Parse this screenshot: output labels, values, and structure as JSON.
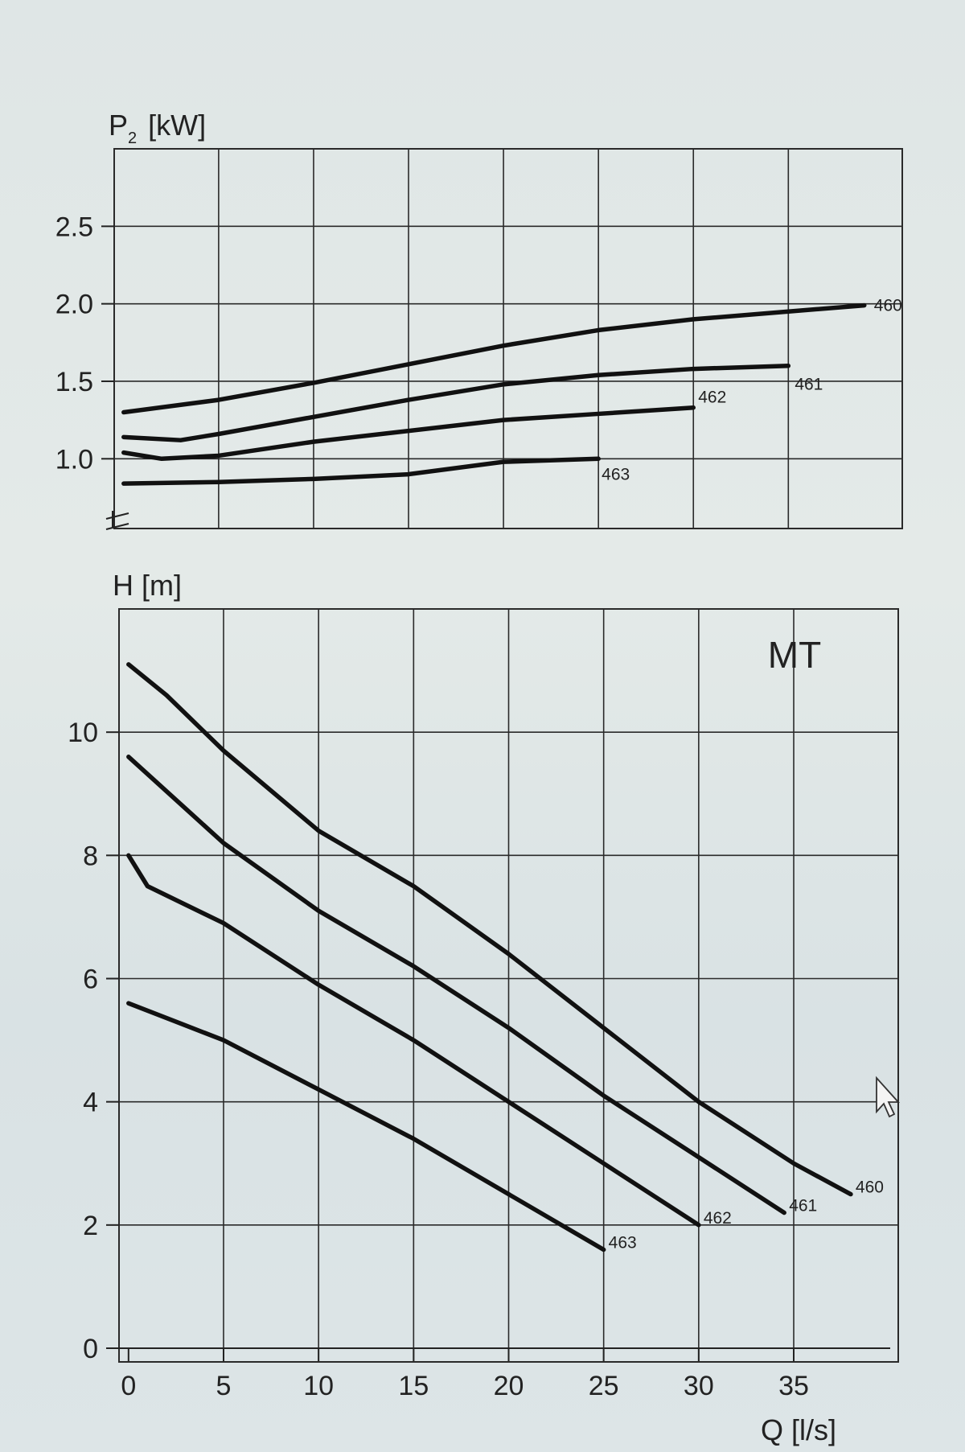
{
  "chart_data": [
    {
      "type": "line",
      "ylabel_main": "P",
      "ylabel_sub": "2",
      "ylabel_unit": "[kW]",
      "xlim": [
        -0.5,
        41
      ],
      "ylim": [
        0.55,
        3.0
      ],
      "yticks": [
        1.0,
        1.5,
        2.0,
        2.5
      ],
      "ytick_labels": [
        "1.0",
        "1.5",
        "2.0",
        "2.5"
      ],
      "grid": true,
      "series": [
        {
          "name": "460",
          "x": [
            0,
            5,
            10,
            15,
            20,
            25,
            30,
            35,
            39
          ],
          "y": [
            1.3,
            1.38,
            1.49,
            1.61,
            1.73,
            1.83,
            1.9,
            1.95,
            1.99
          ]
        },
        {
          "name": "461",
          "x": [
            0,
            3,
            5,
            10,
            15,
            20,
            25,
            30,
            35
          ],
          "y": [
            1.14,
            1.12,
            1.16,
            1.27,
            1.38,
            1.48,
            1.54,
            1.58,
            1.6
          ]
        },
        {
          "name": "462",
          "x": [
            0,
            2,
            5,
            10,
            15,
            20,
            25,
            30
          ],
          "y": [
            1.04,
            1.0,
            1.02,
            1.11,
            1.18,
            1.25,
            1.29,
            1.33
          ]
        },
        {
          "name": "463",
          "x": [
            0,
            5,
            10,
            15,
            20,
            25
          ],
          "y": [
            0.84,
            0.85,
            0.87,
            0.9,
            0.98,
            1.0
          ]
        }
      ]
    },
    {
      "type": "line",
      "ylabel": "H [m]",
      "xlabel": "Q [l/s]",
      "annotation": "MT",
      "xlim": [
        -0.5,
        40.5
      ],
      "ylim": [
        0,
        12
      ],
      "xticks": [
        0,
        5,
        10,
        15,
        20,
        25,
        30,
        35
      ],
      "xtick_labels": [
        "0",
        "5",
        "10",
        "15",
        "20",
        "25",
        "30",
        "35"
      ],
      "yticks": [
        0,
        2,
        4,
        6,
        8,
        10
      ],
      "ytick_labels": [
        "0",
        "2",
        "4",
        "6",
        "8",
        "10"
      ],
      "grid": true,
      "series": [
        {
          "name": "460",
          "x": [
            0,
            2,
            5,
            10,
            15,
            20,
            25,
            30,
            35,
            38
          ],
          "y": [
            11.1,
            10.6,
            9.7,
            8.4,
            7.5,
            6.4,
            5.2,
            4.0,
            3.0,
            2.5
          ]
        },
        {
          "name": "461",
          "x": [
            0,
            5,
            10,
            15,
            20,
            25,
            30,
            34.5
          ],
          "y": [
            9.6,
            8.2,
            7.1,
            6.2,
            5.2,
            4.1,
            3.1,
            2.2
          ]
        },
        {
          "name": "462",
          "x": [
            0,
            1,
            5,
            10,
            15,
            20,
            25,
            30
          ],
          "y": [
            8.0,
            7.5,
            6.9,
            5.9,
            5.0,
            4.0,
            3.0,
            2.0
          ]
        },
        {
          "name": "463",
          "x": [
            0,
            5,
            10,
            15,
            20,
            25
          ],
          "y": [
            5.6,
            5.0,
            4.2,
            3.4,
            2.5,
            1.6
          ]
        }
      ]
    }
  ]
}
